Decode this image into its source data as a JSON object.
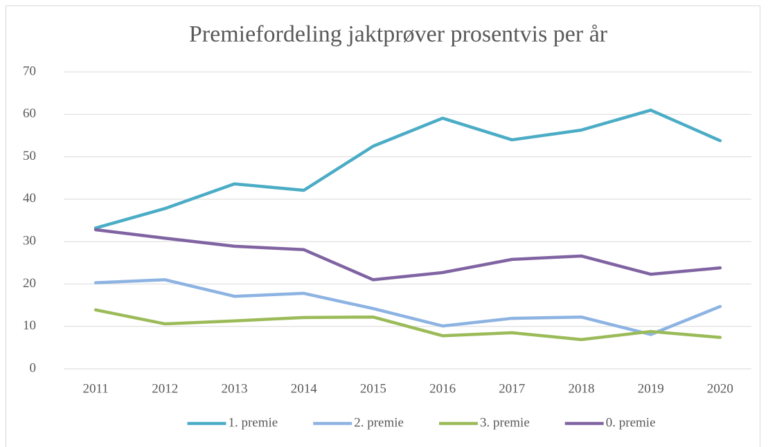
{
  "chart_data": {
    "type": "line",
    "title": "Premiefordeling jaktprøver prosentvis per år",
    "categories": [
      "2011",
      "2012",
      "2013",
      "2014",
      "2015",
      "2016",
      "2017",
      "2018",
      "2019",
      "2020"
    ],
    "series": [
      {
        "name": "1. premie",
        "color": "#4bacc6",
        "values": [
          33.2,
          37.8,
          43.6,
          42.1,
          52.5,
          59.1,
          54.0,
          56.3,
          61.0,
          53.8
        ]
      },
      {
        "name": "2. premie",
        "color": "#8db3e2",
        "values": [
          20.3,
          21.0,
          17.1,
          17.8,
          14.2,
          10.1,
          11.9,
          12.2,
          8.1,
          14.7
        ]
      },
      {
        "name": "3. premie",
        "color": "#9bbb59",
        "values": [
          13.9,
          10.6,
          11.3,
          12.1,
          12.2,
          7.8,
          8.5,
          6.9,
          8.8,
          7.4
        ]
      },
      {
        "name": "0. premie",
        "color": "#8064a2",
        "values": [
          32.8,
          30.8,
          28.9,
          28.1,
          21.0,
          22.7,
          25.8,
          26.6,
          22.3,
          23.8
        ]
      }
    ],
    "ylim": [
      0,
      70
    ],
    "yticks": [
      0,
      10,
      20,
      30,
      40,
      50,
      60,
      70
    ],
    "grid": true,
    "legend": "bottom"
  }
}
